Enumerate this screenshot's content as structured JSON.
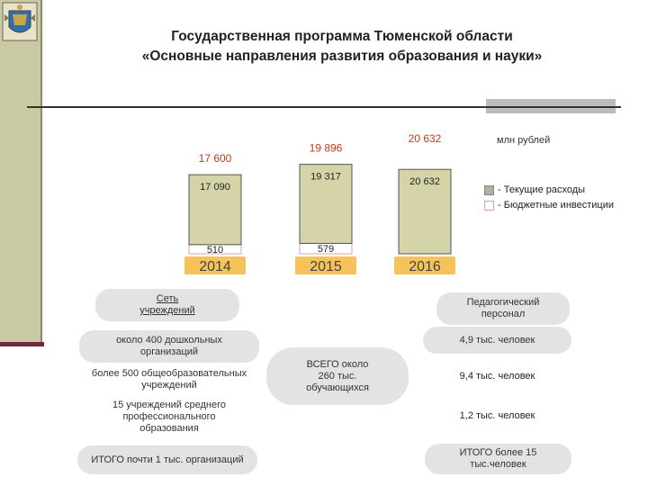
{
  "header": {
    "title_line1": "Государственная программа Тюменской области",
    "title_line2": "«Основные направления развития образования и науки»"
  },
  "chart_data": {
    "type": "bar",
    "stacked": true,
    "unit": "млн рублей",
    "categories": [
      "2014",
      "2015",
      "2016"
    ],
    "totals": [
      17600,
      19896,
      20632
    ],
    "total_labels": [
      "17 600",
      "19 896",
      "20 632"
    ],
    "series": [
      {
        "name": "- Текущие расходы",
        "values": [
          17090,
          19317,
          20632
        ],
        "labels": [
          "17 090",
          "19 317",
          "20 632"
        ],
        "color": "#d4d4a8"
      },
      {
        "name": "- Бюджетные инвестиции",
        "values": [
          510,
          579,
          0
        ],
        "labels": [
          "510",
          "579",
          ""
        ],
        "color": "#ffffff"
      }
    ],
    "colors": {
      "bar_border": "#555555",
      "total_label": "#c0381a",
      "year_box": "#f6c35a",
      "year_text": "#444444"
    },
    "ylim": [
      0,
      22000
    ],
    "legend_position": "right"
  },
  "left_block": {
    "header": "Сеть учреждений",
    "items": [
      "около 400 дошкольных организаций",
      "более 500 общеобразовательных учреждений",
      "15 учреждений среднего профессионального образования"
    ],
    "total": "ИТОГО почти 1 тыс. организаций"
  },
  "center_block": {
    "text": "ВСЕГО около 260 тыс. обучающихся"
  },
  "right_block": {
    "header": "Педагогический персонал",
    "items": [
      "4,9 тыс. человек",
      "9,4 тыс. человек",
      "1,2 тыс. человек"
    ],
    "total": "ИТОГО более 15 тыс.человек"
  },
  "icons": {
    "crest": "coat-of-arms-icon"
  }
}
